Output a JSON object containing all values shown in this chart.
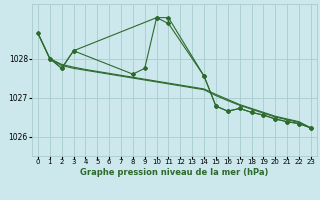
{
  "background_color": "#cce8ec",
  "grid_color": "#aacccc",
  "line_color": "#2d6a2d",
  "title": "Graphe pression niveau de la mer (hPa)",
  "xlim": [
    -0.5,
    23.5
  ],
  "ylim": [
    1025.5,
    1029.4
  ],
  "yticks": [
    1026,
    1027,
    1028
  ],
  "xticks": [
    0,
    1,
    2,
    3,
    4,
    5,
    6,
    7,
    8,
    9,
    10,
    11,
    12,
    13,
    14,
    15,
    16,
    17,
    18,
    19,
    20,
    21,
    22,
    23
  ],
  "series1_x": [
    0,
    1,
    2,
    3,
    4,
    5,
    6,
    7,
    8,
    9,
    10,
    11,
    12,
    13,
    14,
    15,
    16,
    17,
    18,
    19,
    20,
    21,
    22,
    23
  ],
  "series1_y": [
    1028.65,
    1028.0,
    1027.85,
    1027.78,
    1027.72,
    1027.67,
    1027.62,
    1027.57,
    1027.52,
    1027.47,
    1027.42,
    1027.37,
    1027.32,
    1027.27,
    1027.22,
    1027.08,
    1026.95,
    1026.82,
    1026.72,
    1026.62,
    1026.52,
    1026.45,
    1026.38,
    1026.22
  ],
  "series2_x": [
    0,
    1,
    2,
    3,
    4,
    5,
    6,
    7,
    8,
    9,
    10,
    11,
    12,
    13,
    14,
    15,
    16,
    17,
    18,
    19,
    20,
    21,
    22,
    23
  ],
  "series2_y": [
    1028.65,
    1028.0,
    1027.82,
    1027.75,
    1027.7,
    1027.65,
    1027.6,
    1027.55,
    1027.5,
    1027.45,
    1027.4,
    1027.35,
    1027.3,
    1027.25,
    1027.2,
    1027.05,
    1026.92,
    1026.8,
    1026.7,
    1026.6,
    1026.5,
    1026.43,
    1026.36,
    1026.22
  ],
  "series3_x": [
    0,
    1,
    2,
    3,
    8,
    9,
    10,
    11,
    14,
    15,
    16,
    17,
    18,
    19,
    20,
    21,
    22,
    23
  ],
  "series3_y": [
    1028.65,
    1028.0,
    1027.75,
    1028.2,
    1027.6,
    1027.75,
    1029.05,
    1029.05,
    1027.55,
    1026.78,
    1026.65,
    1026.72,
    1026.62,
    1026.55,
    1026.45,
    1026.38,
    1026.33,
    1026.22
  ],
  "series4_x": [
    1,
    2,
    3,
    10,
    11,
    14,
    15,
    16,
    17,
    18,
    19,
    20,
    21,
    22,
    23
  ],
  "series4_y": [
    1028.0,
    1027.75,
    1028.2,
    1029.05,
    1028.9,
    1027.55,
    1026.78,
    1026.65,
    1026.72,
    1026.62,
    1026.55,
    1026.45,
    1026.38,
    1026.33,
    1026.22
  ]
}
